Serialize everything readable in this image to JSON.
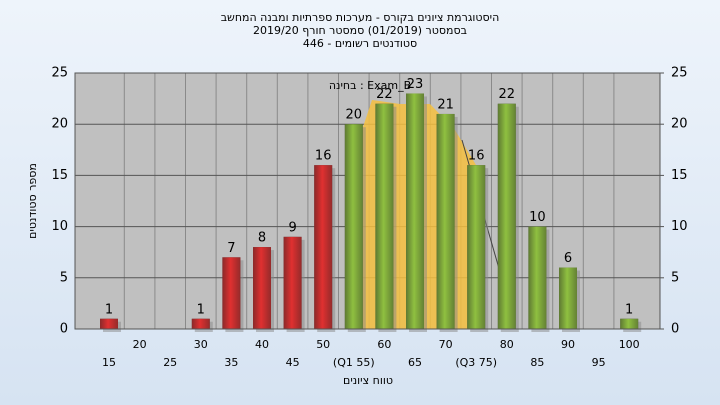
{
  "chart_data": {
    "type": "bar",
    "title": [
      "היסטוגרמת ציונים בקורס - מערכות ספרתיות ומבנה המחשב",
      "בסמסטר (01/2019) סמסטר חורף 2019/20",
      "סטודנטים רשומים - 446"
    ],
    "annotation": "בחינה : Exam_B",
    "x_label": "טווח ציונים",
    "y_label": "מספר סטודנטים",
    "categories": [
      "15",
      "20",
      "25",
      "30",
      "35",
      "40",
      "45",
      "50",
      "(Q1 55)",
      "60",
      "65",
      "70",
      "(Q3 75)",
      "80",
      "85",
      "90",
      "95",
      "100"
    ],
    "values": [
      1,
      0,
      0,
      1,
      7,
      8,
      9,
      16,
      20,
      22,
      23,
      21,
      16,
      22,
      10,
      6,
      0,
      1
    ],
    "colors": [
      "#e03030",
      "#e03030",
      "#e03030",
      "#e03030",
      "#e03030",
      "#e03030",
      "#e03030",
      "#e03030",
      "#8fc040",
      "#8fc040",
      "#8fc040",
      "#8fc040",
      "#8fc040",
      "#8fc040",
      "#8fc040",
      "#8fc040",
      "#8fc040",
      "#8fc040"
    ],
    "ylim": [
      0,
      25
    ],
    "yticks": [
      0,
      5,
      10,
      15,
      20,
      25
    ],
    "y2lim": [
      0,
      25
    ],
    "y2ticks": [
      0,
      5,
      10,
      15,
      20,
      25
    ],
    "grid": true
  }
}
